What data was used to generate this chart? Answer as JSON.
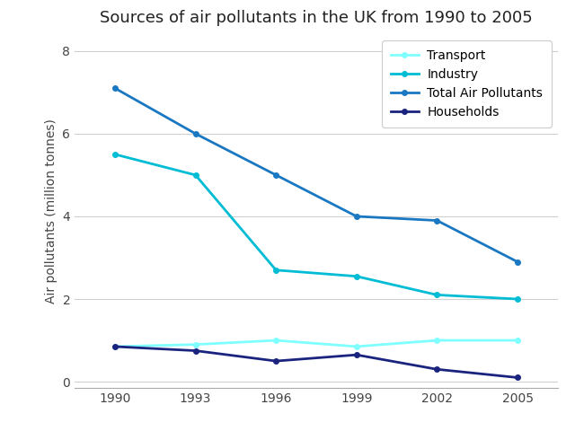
{
  "title": "Sources of air pollutants in the UK from 1990 to 2005",
  "ylabel": "Air pollutants (million tonnes)",
  "years": [
    1990,
    1993,
    1996,
    1999,
    2002,
    2005
  ],
  "series": {
    "Transport": {
      "values": [
        0.85,
        0.9,
        1.0,
        0.85,
        1.0,
        1.0
      ],
      "color": "#7fffff",
      "linewidth": 2
    },
    "Industry": {
      "values": [
        5.5,
        5.0,
        2.7,
        2.55,
        2.1,
        2.0
      ],
      "color": "#00bcd4",
      "linewidth": 2
    },
    "Total Air Pollutants": {
      "values": [
        7.1,
        6.0,
        5.0,
        4.0,
        3.9,
        2.9
      ],
      "color": "#1a78c2",
      "linewidth": 2
    },
    "Households": {
      "values": [
        0.85,
        0.75,
        0.5,
        0.65,
        0.3,
        0.1
      ],
      "color": "#1a237e",
      "linewidth": 2
    }
  },
  "legend_order": [
    "Transport",
    "Industry",
    "Total Air Pollutants",
    "Households"
  ],
  "ylim": [
    -0.15,
    8.4
  ],
  "yticks": [
    0,
    2,
    4,
    6,
    8
  ],
  "xticks": [
    1990,
    1993,
    1996,
    1999,
    2002,
    2005
  ],
  "background_color": "#ffffff",
  "grid_color": "#d0d0d0",
  "title_fontsize": 13,
  "label_fontsize": 10,
  "tick_fontsize": 10,
  "legend_fontsize": 10
}
